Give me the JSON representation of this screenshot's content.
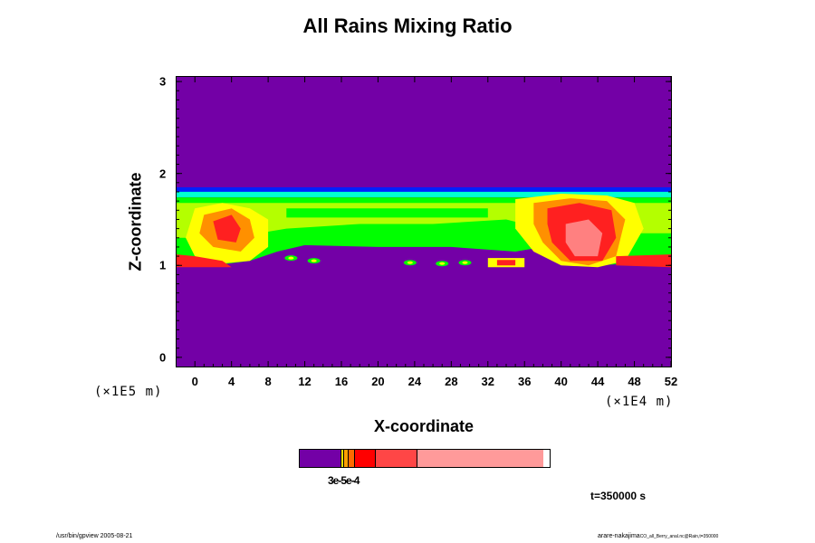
{
  "chart_data": {
    "type": "heatmap",
    "title": "All Rains Mixing Ratio",
    "xlabel": "X-coordinate",
    "ylabel": "Z-coordinate",
    "x_scale_note": "(×1E4 m)",
    "y_scale_note": "(×1E5 m)",
    "xlim": [
      -2,
      52
    ],
    "ylim": [
      -0.1,
      3.05
    ],
    "x_ticks": [
      "0",
      "4",
      "8",
      "12",
      "16",
      "20",
      "24",
      "28",
      "32",
      "36",
      "40",
      "44",
      "48",
      "52"
    ],
    "x_tick_values": [
      0,
      4,
      8,
      12,
      16,
      20,
      24,
      28,
      32,
      36,
      40,
      44,
      48,
      52
    ],
    "y_ticks": [
      "0",
      "1",
      "2",
      "3"
    ],
    "y_tick_values": [
      0,
      1,
      2,
      3
    ],
    "grid": false,
    "rain_layer": {
      "z_bottom": 0.95,
      "z_top": 1.83
    },
    "colorbar": {
      "label": "3e-5e-4",
      "colors": [
        "#7300a6",
        "#f0e000",
        "#ffa000",
        "#ff6a00",
        "#ff0000",
        "#ff4646",
        "#ff9a9a"
      ],
      "widths": [
        45,
        3,
        5,
        7,
        23,
        46,
        139
      ]
    },
    "colors": {
      "background": "#7300a6",
      "cloud_blue": "#0020ff",
      "cloud_cyan": "#00ffd0",
      "cloud_green": "#00ff00",
      "cloud_yellowgreen": "#b4ff00",
      "cloud_yellow": "#ffff00",
      "cloud_orange": "#ff9000",
      "cloud_red": "#ff2020",
      "cloud_pink": "#ff8080"
    },
    "time_label": "t=350000 s"
  },
  "footer": {
    "left": "/usr/bin/gpview 2005-08-21",
    "right_user": "arare-nakajima",
    "right_file": "CO_all_Berry_anal.nc@Rain,t=350000"
  }
}
